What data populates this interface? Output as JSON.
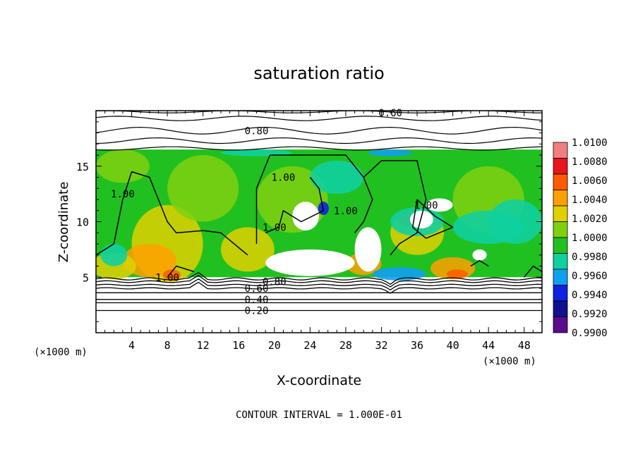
{
  "chart_data": {
    "type": "heatmap",
    "title": "saturation ratio",
    "xlabel": "X-coordinate",
    "ylabel": "Z-coordinate",
    "x_unit": "(×1000 m)",
    "y_unit": "(×1000 m)",
    "xlim": [
      0,
      50
    ],
    "ylim": [
      0,
      20
    ],
    "x_ticks": [
      4,
      8,
      12,
      16,
      20,
      24,
      28,
      32,
      36,
      40,
      44,
      48
    ],
    "y_ticks": [
      5,
      10,
      15
    ],
    "footer": "CONTOUR INTERVAL = 1.000E-01",
    "colorbar": {
      "levels": [
        "1.0100",
        "1.0080",
        "1.0060",
        "1.0040",
        "1.0020",
        "1.0000",
        "0.9980",
        "0.9960",
        "0.9940",
        "0.9920",
        "0.9900"
      ],
      "colors": [
        "#f08080",
        "#e8141e",
        "#ff5a00",
        "#ffa000",
        "#e0d000",
        "#80d010",
        "#20c020",
        "#10d0a0",
        "#10a0f0",
        "#1020e0",
        "#101090",
        "#5a0a8c"
      ]
    },
    "cloud_region": {
      "x_range": [
        0,
        50
      ],
      "z_range": [
        5,
        16.5
      ],
      "dominant_value": 1.0
    },
    "contours": [
      {
        "label": "0.20",
        "z": 2.0,
        "label_x": 18
      },
      {
        "label": "0.40",
        "z": 3.0,
        "label_x": 18
      },
      {
        "label": "0.60",
        "z": 4.0,
        "label_x": 18
      },
      {
        "label": "0.80",
        "z": 4.6,
        "label_x": 20
      },
      {
        "label": "1.00",
        "z": 5.0,
        "label_x": 8
      },
      {
        "label": "1.00",
        "z": 12.5,
        "label_x": 3
      },
      {
        "label": "1.00",
        "z": 14,
        "label_x": 21
      },
      {
        "label": "1.00",
        "z": 11,
        "label_x": 28
      },
      {
        "label": "1.00",
        "z": 9.5,
        "label_x": 20
      },
      {
        "label": "1.00",
        "z": 11.5,
        "label_x": 37
      },
      {
        "label": "0.80",
        "z": 18.2,
        "label_x": 18
      },
      {
        "label": "0.60",
        "z": 19.8,
        "label_x": 33
      }
    ]
  }
}
